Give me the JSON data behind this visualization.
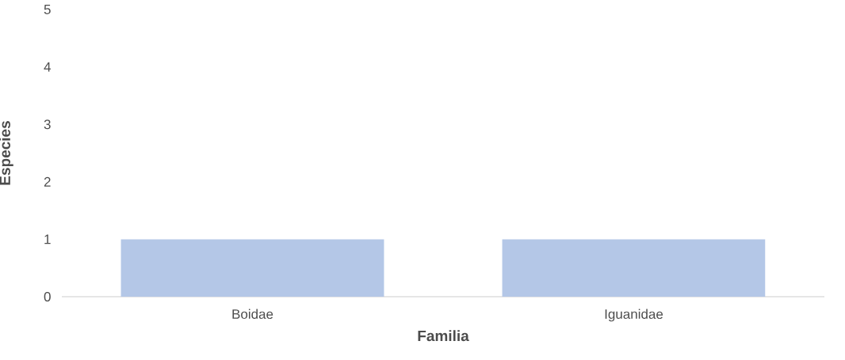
{
  "chart_data": {
    "type": "bar",
    "xlabel": "Familia",
    "ylabel": "Especies",
    "categories": [
      "Boidae",
      "Iguanidae"
    ],
    "values": [
      1,
      1
    ],
    "color": "#b4c7e7",
    "ylim": [
      0,
      5
    ],
    "yticks": [
      0,
      1,
      2,
      3,
      4,
      5
    ]
  }
}
